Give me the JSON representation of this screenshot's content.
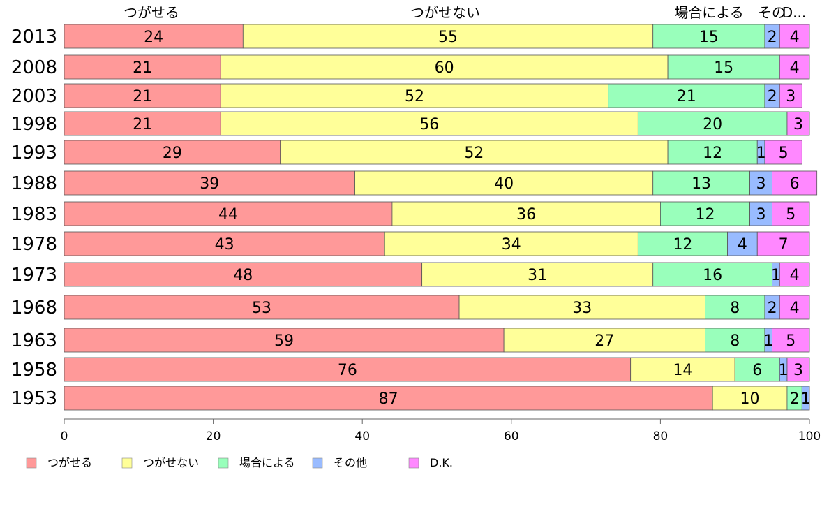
{
  "chart_data": {
    "type": "bar",
    "orientation": "horizontal",
    "stacked": true,
    "categories": [
      "2013",
      "2008",
      "2003",
      "1998",
      "1993",
      "1988",
      "1983",
      "1978",
      "1973",
      "1968",
      "1963",
      "1958",
      "1953"
    ],
    "series": [
      {
        "name": "つがせる",
        "color": "#ff9999",
        "values": [
          24,
          21,
          21,
          21,
          29,
          39,
          44,
          43,
          48,
          53,
          59,
          76,
          87
        ]
      },
      {
        "name": "つがせない",
        "color": "#ffff99",
        "values": [
          55,
          60,
          52,
          56,
          52,
          40,
          36,
          34,
          31,
          33,
          27,
          14,
          10
        ]
      },
      {
        "name": "場合による",
        "color": "#99ffbb",
        "values": [
          15,
          15,
          21,
          20,
          12,
          13,
          12,
          12,
          16,
          8,
          8,
          6,
          2
        ]
      },
      {
        "name": "その他",
        "color": "#99bbff",
        "values": [
          2,
          0,
          2,
          0,
          1,
          3,
          3,
          4,
          1,
          2,
          1,
          1,
          1
        ]
      },
      {
        "name": "D.K.",
        "color": "#ff88ff",
        "values": [
          4,
          4,
          3,
          3,
          5,
          6,
          5,
          7,
          4,
          4,
          5,
          3,
          0
        ]
      }
    ],
    "top_labels": [
      "つがせる",
      "つがせない",
      "場合による",
      "その",
      "D..."
    ],
    "xlim": [
      0,
      100
    ],
    "xticks": [
      "0",
      "20",
      "40",
      "60",
      "80",
      "100"
    ],
    "legend_position": "bottom-left"
  }
}
